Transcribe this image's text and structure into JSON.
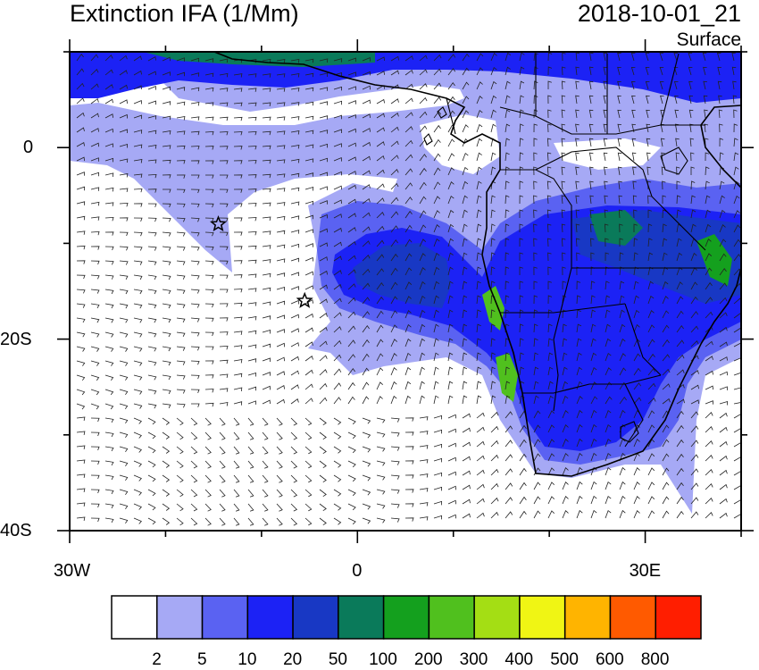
{
  "header": {
    "title": "Extinction IFA (1/Mm)",
    "datetime": "2018-10-01_21",
    "level": "Surface"
  },
  "axes": {
    "x_ticks": [
      {
        "value": -30,
        "label": "30W"
      },
      {
        "value": 0,
        "label": "0"
      },
      {
        "value": 30,
        "label": "30E"
      }
    ],
    "y_ticks": [
      {
        "value": 0,
        "label": "0"
      },
      {
        "value": -20,
        "label": "20S"
      },
      {
        "value": -40,
        "label": "40S"
      }
    ],
    "lon_range": [
      -30,
      40
    ],
    "lat_range": [
      -40,
      10
    ]
  },
  "markers": [
    {
      "name": "star-marker",
      "lon": -14.5,
      "lat": -8.0
    },
    {
      "name": "star-marker",
      "lon": -5.5,
      "lat": -16.0
    }
  ],
  "colorbar": {
    "labels": [
      "2",
      "5",
      "10",
      "20",
      "50",
      "100",
      "200",
      "300",
      "400",
      "500",
      "600",
      "800"
    ],
    "colors": [
      "#ffffff",
      "#a6a9f5",
      "#5a62f2",
      "#1c22f5",
      "#1838c4",
      "#0a7a5a",
      "#14a01e",
      "#50c01e",
      "#a4de14",
      "#f0f514",
      "#ffb400",
      "#ff5a00",
      "#ff1e00"
    ]
  }
}
